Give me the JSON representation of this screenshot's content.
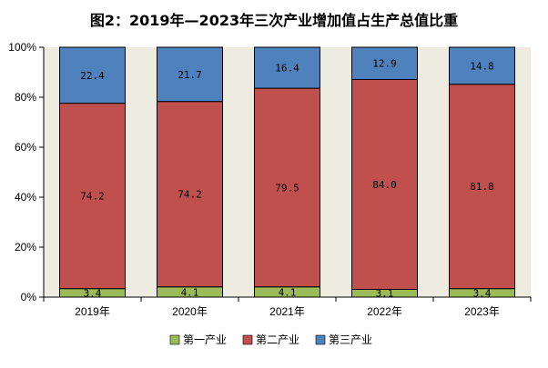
{
  "chart_data": {
    "type": "bar",
    "stacked": true,
    "title": "图2：2019年—2023年三次产业增加值占生产总值比重",
    "categories": [
      "2019年",
      "2020年",
      "2021年",
      "2022年",
      "2023年"
    ],
    "series": [
      {
        "name": "第一产业",
        "color": "#9bbb59",
        "values": [
          3.4,
          4.1,
          4.1,
          3.1,
          3.4
        ],
        "labels": [
          "3.4",
          "4.1",
          "4.1",
          "3.1",
          "3.4"
        ]
      },
      {
        "name": "第二产业",
        "color": "#c0504d",
        "values": [
          74.2,
          74.2,
          79.5,
          84.0,
          81.8
        ],
        "labels": [
          "74.2",
          "74.2",
          "79.5",
          "84.0",
          "81.8"
        ]
      },
      {
        "name": "第三产业",
        "color": "#4f81bd",
        "values": [
          22.4,
          21.7,
          16.4,
          12.9,
          14.8
        ],
        "labels": [
          "22.4",
          "21.7",
          "16.4",
          "12.9",
          "14.8"
        ]
      }
    ],
    "yaxis": {
      "ticks": [
        "0%",
        "20%",
        "40%",
        "60%",
        "80%",
        "100%"
      ],
      "tick_values": [
        0,
        20,
        40,
        60,
        80,
        100
      ],
      "ylim": [
        0,
        100
      ]
    },
    "plot_background": "#eeebe0",
    "legend_position": "bottom-center",
    "grid": false
  }
}
